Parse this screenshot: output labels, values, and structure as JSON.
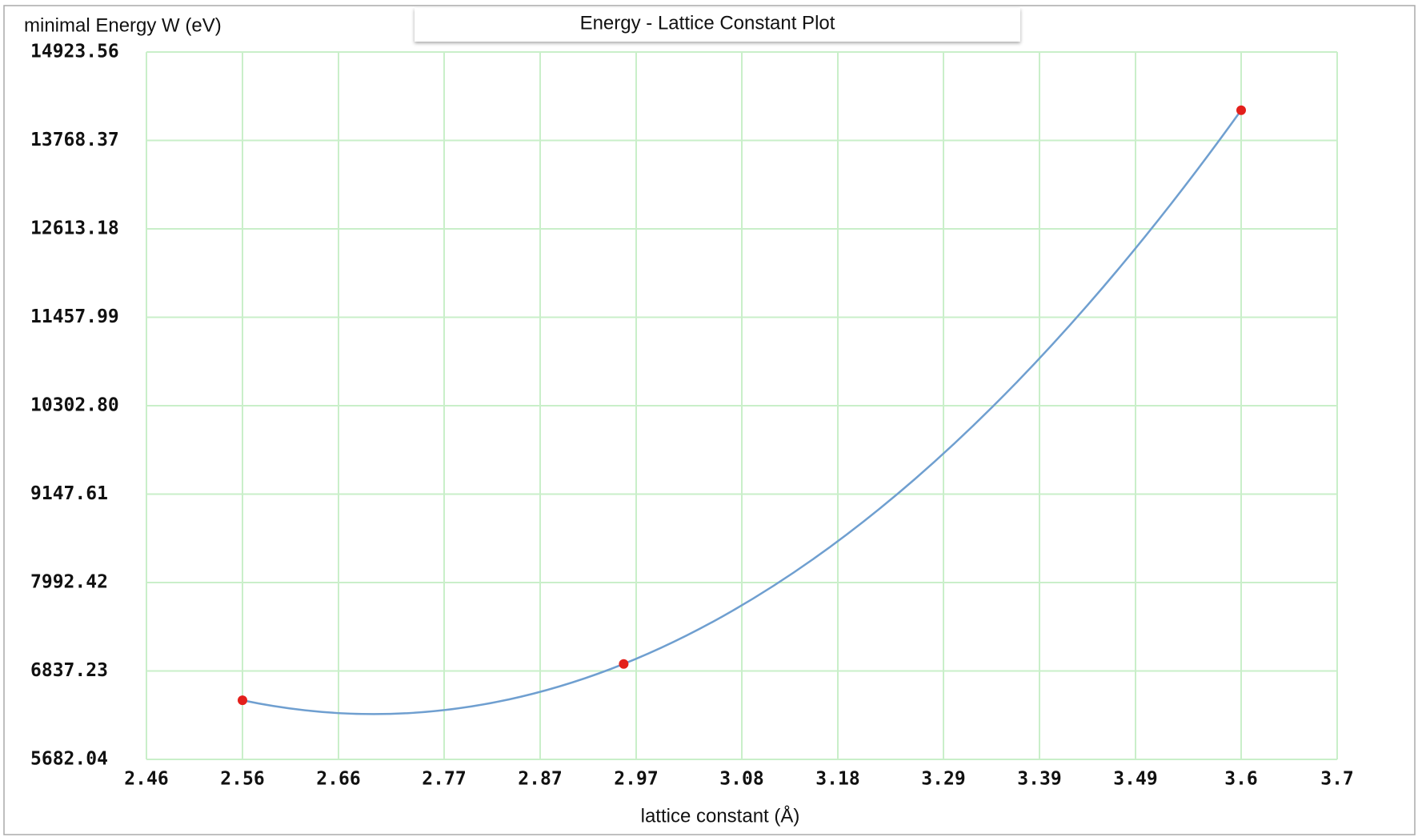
{
  "chart_data": {
    "type": "line",
    "title": "Energy - Lattice Constant Plot",
    "x_label": "lattice constant (Å)",
    "y_label": "minimal Energy W (eV)",
    "x": [
      2.56,
      2.957,
      3.6
    ],
    "series": [
      {
        "color": "#6f9fd0",
        "marker_color": "#e3201b",
        "values": [
          6454,
          6929,
          14163
        ]
      }
    ],
    "xlim": [
      2.46,
      3.7
    ],
    "xticks": [
      2.46,
      2.56,
      2.66,
      2.77,
      2.87,
      2.97,
      3.08,
      3.18,
      3.29,
      3.39,
      3.49,
      3.6,
      3.7
    ],
    "ylim": [
      5682.04,
      14923.56
    ],
    "yticks": [
      5682.04,
      6837.23,
      7992.42,
      9147.61,
      {
        "value": 10302.8,
        "label": "10302.80"
      },
      11457.99,
      12613.18,
      13768.37,
      14923.56
    ],
    "grid": true,
    "grid_color": "#c9efc9"
  }
}
